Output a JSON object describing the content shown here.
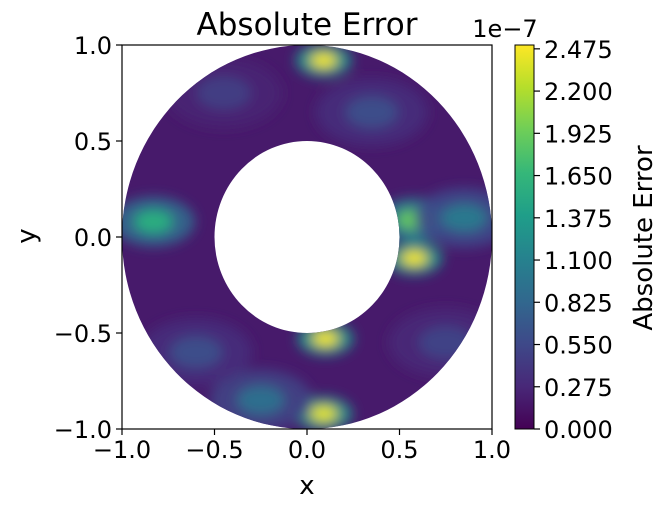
{
  "chart_data": {
    "type": "heatmap",
    "title": "Absolute Error",
    "xlabel": "x",
    "ylabel": "y",
    "xlim": [
      -1.0,
      1.0
    ],
    "ylim": [
      -1.0,
      1.0
    ],
    "xticks": [
      "−1.0",
      "−0.5",
      "0.0",
      "0.5",
      "1.0"
    ],
    "yticks": [
      "−1.0",
      "−0.5",
      "0.0",
      "0.5",
      "1.0"
    ],
    "domain": {
      "shape": "annulus",
      "inner_radius": 0.5,
      "outer_radius": 1.0
    },
    "colorbar": {
      "label": "Absolute Error",
      "multiplier": "1e−7",
      "min": 0.0,
      "max": 2.5,
      "ticks": [
        "0.000",
        "0.275",
        "0.550",
        "0.825",
        "1.100",
        "1.375",
        "1.650",
        "1.925",
        "2.200",
        "2.475"
      ],
      "colormap": [
        "#440154",
        "#482878",
        "#3e4989",
        "#31688e",
        "#26828e",
        "#1f9e89",
        "#35b779",
        "#6ece58",
        "#b5de2b",
        "#fde725"
      ]
    },
    "hotspots": [
      {
        "x": 0.09,
        "y": 0.92,
        "value": 2.45
      },
      {
        "x": 0.09,
        "y": -0.92,
        "value": 2.4
      },
      {
        "x": 0.1,
        "y": -0.53,
        "value": 2.45
      },
      {
        "x": 0.58,
        "y": -0.11,
        "value": 2.45
      },
      {
        "x": 0.58,
        "y": 0.09,
        "value": 1.9
      },
      {
        "x": -0.83,
        "y": 0.08,
        "value": 1.55
      },
      {
        "x": 0.85,
        "y": 0.1,
        "value": 1.0
      },
      {
        "x": -0.25,
        "y": -0.85,
        "value": 0.9
      },
      {
        "x": 0.35,
        "y": 0.65,
        "value": 0.6
      },
      {
        "x": -0.6,
        "y": -0.6,
        "value": 0.6
      },
      {
        "x": 0.75,
        "y": -0.55,
        "value": 0.5
      },
      {
        "x": -0.45,
        "y": 0.75,
        "value": 0.45
      }
    ],
    "base_value": 0.18
  }
}
